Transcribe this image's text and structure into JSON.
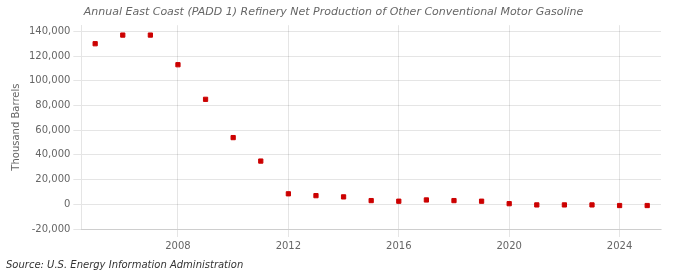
{
  "chart_data": {
    "type": "scatter",
    "title": "Annual East Coast (PADD 1) Refinery Net Production of Other Conventional Motor Gasoline",
    "ylabel": "Thousand Barrels",
    "annotation": "Source: U.S. Energy Information Administration",
    "x": [
      2005,
      2006,
      2007,
      2008,
      2009,
      2010,
      2011,
      2012,
      2013,
      2014,
      2015,
      2016,
      2017,
      2018,
      2019,
      2020,
      2021,
      2022,
      2023,
      2024,
      2025
    ],
    "values": [
      130000,
      137000,
      137000,
      113000,
      85000,
      54000,
      35000,
      8500,
      7000,
      6000,
      3000,
      2500,
      3500,
      3000,
      2500,
      500,
      -500,
      -500,
      -500,
      -1000,
      -1000
    ],
    "color": "#cc0000",
    "marker": "square",
    "xlim": [
      2004.5,
      2025.5
    ],
    "xticks": [
      2008,
      2012,
      2016,
      2020,
      2024
    ],
    "ylim": [
      -20000,
      145000
    ],
    "yticks": [
      {
        "value": -20000,
        "label": "-20,000"
      },
      0,
      {
        "value": 20000,
        "label": "20,000"
      },
      {
        "value": 40000,
        "label": "40,000"
      },
      {
        "value": 60000,
        "label": "60,000"
      },
      {
        "value": 80000,
        "label": "80,000"
      },
      {
        "value": 100000,
        "label": "100,000"
      },
      {
        "value": 120000,
        "label": "120,000"
      },
      {
        "value": 140000,
        "label": "140,000"
      }
    ],
    "grid": true
  }
}
